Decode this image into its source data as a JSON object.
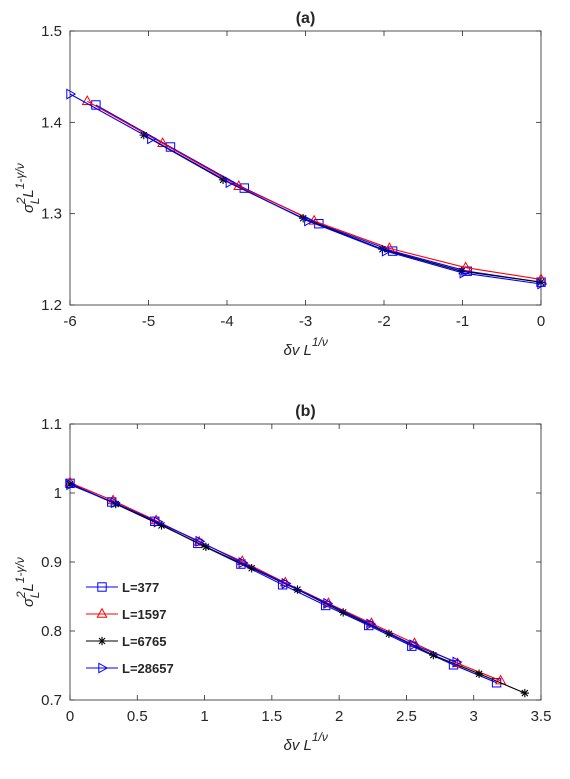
{
  "chart_data": [
    {
      "type": "line",
      "title": "(a)",
      "xlabel": {
        "base": "δv L",
        "sup": "1/ν"
      },
      "ylabel": {
        "base": "σ",
        "sup1": "2",
        "sub1": "L",
        "mid": "L",
        "sup2": "1-γ/ν"
      },
      "xlim": [
        -6,
        0
      ],
      "ylim": [
        1.2,
        1.5
      ],
      "xticks": [
        -6,
        -5,
        -4,
        -3,
        -2,
        -1,
        0
      ],
      "yticks": [
        1.2,
        1.3,
        1.4,
        1.5
      ],
      "xtick_labels": [
        "-6",
        "-5",
        "-4",
        "-3",
        "-2",
        "-1",
        "0"
      ],
      "ytick_labels": [
        "1.2",
        "1.3",
        "1.4",
        "1.5"
      ],
      "grid": false,
      "legend": "none",
      "series": [
        {
          "name": "L=377",
          "color": "#0000ff",
          "marker": "square",
          "x": [
            -5.67,
            -4.72,
            -3.78,
            -2.83,
            -1.89,
            -0.94,
            0
          ],
          "y": [
            1.419,
            1.373,
            1.328,
            1.289,
            1.259,
            1.237,
            1.225
          ]
        },
        {
          "name": "L=1597",
          "color": "#ff0000",
          "marker": "triangle-up",
          "x": [
            -5.78,
            -4.82,
            -3.85,
            -2.89,
            -1.93,
            -0.96,
            0
          ],
          "y": [
            1.423,
            1.377,
            1.33,
            1.292,
            1.262,
            1.241,
            1.228
          ]
        },
        {
          "name": "L=6765",
          "color": "#000000",
          "marker": "asterisk",
          "x": [
            -5.06,
            -4.05,
            -3.03,
            -2.02,
            -1.01,
            0
          ],
          "y": [
            1.386,
            1.337,
            1.295,
            1.261,
            1.237,
            1.225
          ]
        },
        {
          "name": "L=28657",
          "color": "#0000ff",
          "marker": "triangle-right",
          "x": [
            -6.0,
            -4.97,
            -3.97,
            -2.97,
            -1.98,
            -0.99,
            0
          ],
          "y": [
            1.431,
            1.382,
            1.334,
            1.292,
            1.259,
            1.235,
            1.223
          ]
        }
      ]
    },
    {
      "type": "line",
      "title": "(b)",
      "xlabel": {
        "base": "δv L",
        "sup": "1/ν"
      },
      "ylabel": {
        "base": "σ",
        "sup1": "2",
        "sub1": "L",
        "mid": "L",
        "sup2": "1-γ/ν"
      },
      "xlim": [
        0,
        3.5
      ],
      "ylim": [
        0.7,
        1.1
      ],
      "xticks": [
        0,
        0.5,
        1,
        1.5,
        2,
        2.5,
        3,
        3.5
      ],
      "yticks": [
        0.7,
        0.8,
        0.9,
        1,
        1.1
      ],
      "xtick_labels": [
        "0",
        "0.5",
        "1",
        "1.5",
        "2",
        "2.5",
        "3",
        "3.5"
      ],
      "ytick_labels": [
        "0.7",
        "0.8",
        "0.9",
        "1",
        "1.1"
      ],
      "grid": false,
      "legend": "lower-left",
      "series": [
        {
          "name": "L=377",
          "color": "#0000ff",
          "marker": "square",
          "x": [
            0,
            0.31,
            0.63,
            0.95,
            1.27,
            1.58,
            1.9,
            2.22,
            2.54,
            2.85,
            3.17
          ],
          "y": [
            1.014,
            0.987,
            0.959,
            0.927,
            0.897,
            0.867,
            0.837,
            0.808,
            0.778,
            0.751,
            0.725
          ]
        },
        {
          "name": "L=1597",
          "color": "#ff0000",
          "marker": "triangle-up",
          "x": [
            0,
            0.32,
            0.64,
            0.96,
            1.28,
            1.6,
            1.92,
            2.24,
            2.56,
            2.88,
            3.2
          ],
          "y": [
            1.015,
            0.989,
            0.96,
            0.929,
            0.901,
            0.87,
            0.84,
            0.811,
            0.782,
            0.753,
            0.728
          ]
        },
        {
          "name": "L=6765",
          "color": "#000000",
          "marker": "asterisk",
          "x": [
            0,
            0.34,
            0.68,
            1.01,
            1.35,
            1.69,
            2.03,
            2.37,
            2.7,
            3.04,
            3.38
          ],
          "y": [
            1.013,
            0.984,
            0.953,
            0.922,
            0.891,
            0.86,
            0.827,
            0.796,
            0.765,
            0.738,
            0.71
          ]
        },
        {
          "name": "L=28657",
          "color": "#0000ff",
          "marker": "triangle-right",
          "x": [
            0,
            0.33,
            0.65,
            0.96,
            1.28,
            1.6,
            1.91,
            2.23,
            2.55,
            2.87
          ],
          "y": [
            1.012,
            0.986,
            0.958,
            0.93,
            0.899,
            0.869,
            0.84,
            0.81,
            0.78,
            0.755
          ]
        }
      ]
    }
  ]
}
